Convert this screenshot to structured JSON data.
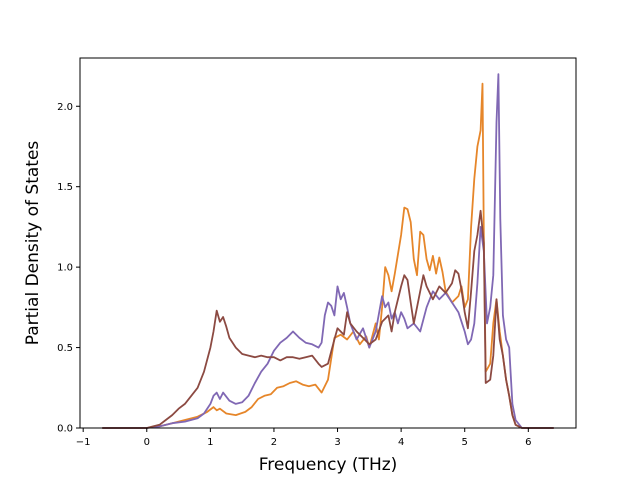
{
  "chart_data": {
    "type": "line",
    "xlabel": "Frequency (THz)",
    "ylabel": "Partial Density of States",
    "xlim": [
      -1.05,
      6.75
    ],
    "ylim": [
      0,
      2.3
    ],
    "xticks": [
      -1,
      0,
      1,
      2,
      3,
      4,
      5,
      6
    ],
    "yticks": [
      0,
      0.5,
      1,
      1.5,
      2
    ],
    "xtick_labels": [
      "−1",
      "0",
      "1",
      "2",
      "3",
      "4",
      "5",
      "6"
    ],
    "ytick_labels": [
      "0.0",
      "0.5",
      "1.0",
      "1.5",
      "2.0"
    ],
    "grid": false,
    "series": [
      {
        "color": "#e6862a",
        "points": [
          [
            -0.7,
            0
          ],
          [
            0,
            0
          ],
          [
            0.2,
            0.01
          ],
          [
            0.4,
            0.03
          ],
          [
            0.6,
            0.05
          ],
          [
            0.8,
            0.07
          ],
          [
            0.95,
            0.1
          ],
          [
            1.05,
            0.13
          ],
          [
            1.1,
            0.11
          ],
          [
            1.15,
            0.12
          ],
          [
            1.25,
            0.09
          ],
          [
            1.4,
            0.08
          ],
          [
            1.55,
            0.1
          ],
          [
            1.65,
            0.13
          ],
          [
            1.75,
            0.18
          ],
          [
            1.85,
            0.2
          ],
          [
            1.95,
            0.21
          ],
          [
            2.05,
            0.25
          ],
          [
            2.15,
            0.26
          ],
          [
            2.25,
            0.28
          ],
          [
            2.35,
            0.29
          ],
          [
            2.45,
            0.27
          ],
          [
            2.55,
            0.26
          ],
          [
            2.65,
            0.27
          ],
          [
            2.75,
            0.22
          ],
          [
            2.85,
            0.3
          ],
          [
            2.95,
            0.56
          ],
          [
            3.05,
            0.58
          ],
          [
            3.15,
            0.55
          ],
          [
            3.25,
            0.6
          ],
          [
            3.35,
            0.52
          ],
          [
            3.45,
            0.57
          ],
          [
            3.5,
            0.5
          ],
          [
            3.6,
            0.65
          ],
          [
            3.65,
            0.55
          ],
          [
            3.7,
            0.75
          ],
          [
            3.75,
            1.0
          ],
          [
            3.8,
            0.95
          ],
          [
            3.85,
            0.85
          ],
          [
            3.9,
            0.96
          ],
          [
            4.0,
            1.2
          ],
          [
            4.05,
            1.37
          ],
          [
            4.1,
            1.36
          ],
          [
            4.15,
            1.28
          ],
          [
            4.2,
            1.05
          ],
          [
            4.25,
            0.95
          ],
          [
            4.3,
            1.22
          ],
          [
            4.35,
            1.2
          ],
          [
            4.4,
            1.05
          ],
          [
            4.45,
            0.98
          ],
          [
            4.5,
            1.07
          ],
          [
            4.55,
            0.96
          ],
          [
            4.6,
            1.06
          ],
          [
            4.65,
            0.97
          ],
          [
            4.7,
            0.85
          ],
          [
            4.8,
            0.78
          ],
          [
            4.9,
            0.82
          ],
          [
            4.95,
            0.88
          ],
          [
            5.0,
            0.75
          ],
          [
            5.05,
            0.8
          ],
          [
            5.1,
            1.25
          ],
          [
            5.15,
            1.55
          ],
          [
            5.2,
            1.75
          ],
          [
            5.25,
            1.85
          ],
          [
            5.28,
            2.14
          ],
          [
            5.3,
            1.2
          ],
          [
            5.33,
            0.35
          ],
          [
            5.4,
            0.4
          ],
          [
            5.45,
            0.65
          ],
          [
            5.5,
            0.8
          ],
          [
            5.55,
            0.6
          ],
          [
            5.6,
            0.45
          ],
          [
            5.65,
            0.3
          ],
          [
            5.7,
            0.2
          ],
          [
            5.75,
            0.08
          ],
          [
            5.8,
            0.02
          ],
          [
            5.9,
            0
          ],
          [
            6.4,
            0
          ]
        ]
      },
      {
        "color": "#8068b4",
        "points": [
          [
            -0.7,
            0
          ],
          [
            0,
            0
          ],
          [
            0.2,
            0.01
          ],
          [
            0.4,
            0.03
          ],
          [
            0.6,
            0.04
          ],
          [
            0.8,
            0.06
          ],
          [
            0.9,
            0.09
          ],
          [
            1.0,
            0.15
          ],
          [
            1.05,
            0.2
          ],
          [
            1.1,
            0.22
          ],
          [
            1.15,
            0.18
          ],
          [
            1.2,
            0.22
          ],
          [
            1.3,
            0.17
          ],
          [
            1.4,
            0.15
          ],
          [
            1.5,
            0.16
          ],
          [
            1.6,
            0.2
          ],
          [
            1.7,
            0.28
          ],
          [
            1.8,
            0.35
          ],
          [
            1.9,
            0.4
          ],
          [
            2.0,
            0.48
          ],
          [
            2.1,
            0.53
          ],
          [
            2.2,
            0.56
          ],
          [
            2.3,
            0.6
          ],
          [
            2.4,
            0.56
          ],
          [
            2.5,
            0.53
          ],
          [
            2.6,
            0.52
          ],
          [
            2.7,
            0.5
          ],
          [
            2.75,
            0.53
          ],
          [
            2.8,
            0.7
          ],
          [
            2.85,
            0.78
          ],
          [
            2.9,
            0.76
          ],
          [
            2.95,
            0.7
          ],
          [
            3.0,
            0.88
          ],
          [
            3.05,
            0.8
          ],
          [
            3.1,
            0.84
          ],
          [
            3.15,
            0.75
          ],
          [
            3.2,
            0.65
          ],
          [
            3.3,
            0.55
          ],
          [
            3.4,
            0.62
          ],
          [
            3.5,
            0.5
          ],
          [
            3.6,
            0.6
          ],
          [
            3.7,
            0.82
          ],
          [
            3.75,
            0.75
          ],
          [
            3.8,
            0.78
          ],
          [
            3.85,
            0.68
          ],
          [
            3.9,
            0.72
          ],
          [
            3.95,
            0.65
          ],
          [
            4.0,
            0.72
          ],
          [
            4.05,
            0.68
          ],
          [
            4.1,
            0.62
          ],
          [
            4.2,
            0.65
          ],
          [
            4.3,
            0.6
          ],
          [
            4.4,
            0.75
          ],
          [
            4.5,
            0.85
          ],
          [
            4.6,
            0.8
          ],
          [
            4.7,
            0.84
          ],
          [
            4.8,
            0.78
          ],
          [
            4.9,
            0.72
          ],
          [
            5.0,
            0.6
          ],
          [
            5.05,
            0.52
          ],
          [
            5.1,
            0.55
          ],
          [
            5.15,
            0.65
          ],
          [
            5.2,
            0.9
          ],
          [
            5.25,
            1.25
          ],
          [
            5.3,
            1.1
          ],
          [
            5.35,
            0.65
          ],
          [
            5.4,
            0.75
          ],
          [
            5.45,
            0.95
          ],
          [
            5.5,
            1.9
          ],
          [
            5.53,
            2.2
          ],
          [
            5.56,
            1.3
          ],
          [
            5.6,
            0.7
          ],
          [
            5.65,
            0.55
          ],
          [
            5.7,
            0.5
          ],
          [
            5.75,
            0.15
          ],
          [
            5.8,
            0.05
          ],
          [
            5.9,
            0
          ],
          [
            6.4,
            0
          ]
        ]
      },
      {
        "color": "#8c4a42",
        "points": [
          [
            -0.7,
            0
          ],
          [
            0,
            0
          ],
          [
            0.1,
            0.01
          ],
          [
            0.2,
            0.02
          ],
          [
            0.3,
            0.05
          ],
          [
            0.4,
            0.08
          ],
          [
            0.5,
            0.12
          ],
          [
            0.6,
            0.15
          ],
          [
            0.7,
            0.2
          ],
          [
            0.8,
            0.25
          ],
          [
            0.9,
            0.35
          ],
          [
            1.0,
            0.5
          ],
          [
            1.05,
            0.6
          ],
          [
            1.1,
            0.73
          ],
          [
            1.15,
            0.66
          ],
          [
            1.2,
            0.69
          ],
          [
            1.25,
            0.63
          ],
          [
            1.3,
            0.56
          ],
          [
            1.4,
            0.5
          ],
          [
            1.5,
            0.46
          ],
          [
            1.6,
            0.45
          ],
          [
            1.7,
            0.44
          ],
          [
            1.8,
            0.45
          ],
          [
            1.9,
            0.44
          ],
          [
            2.0,
            0.44
          ],
          [
            2.1,
            0.42
          ],
          [
            2.2,
            0.44
          ],
          [
            2.3,
            0.44
          ],
          [
            2.4,
            0.43
          ],
          [
            2.5,
            0.44
          ],
          [
            2.6,
            0.45
          ],
          [
            2.7,
            0.4
          ],
          [
            2.75,
            0.38
          ],
          [
            2.85,
            0.4
          ],
          [
            2.95,
            0.55
          ],
          [
            3.0,
            0.62
          ],
          [
            3.1,
            0.58
          ],
          [
            3.15,
            0.72
          ],
          [
            3.2,
            0.65
          ],
          [
            3.3,
            0.6
          ],
          [
            3.4,
            0.56
          ],
          [
            3.5,
            0.52
          ],
          [
            3.6,
            0.55
          ],
          [
            3.7,
            0.66
          ],
          [
            3.8,
            0.7
          ],
          [
            3.85,
            0.6
          ],
          [
            3.9,
            0.72
          ],
          [
            4.0,
            0.88
          ],
          [
            4.05,
            0.95
          ],
          [
            4.1,
            0.92
          ],
          [
            4.15,
            0.78
          ],
          [
            4.2,
            0.65
          ],
          [
            4.3,
            0.85
          ],
          [
            4.35,
            0.95
          ],
          [
            4.4,
            0.88
          ],
          [
            4.5,
            0.8
          ],
          [
            4.6,
            0.88
          ],
          [
            4.7,
            0.84
          ],
          [
            4.8,
            0.9
          ],
          [
            4.85,
            0.98
          ],
          [
            4.9,
            0.96
          ],
          [
            4.95,
            0.86
          ],
          [
            5.0,
            0.72
          ],
          [
            5.05,
            0.62
          ],
          [
            5.1,
            0.85
          ],
          [
            5.15,
            1.1
          ],
          [
            5.2,
            1.2
          ],
          [
            5.25,
            1.35
          ],
          [
            5.3,
            1.15
          ],
          [
            5.33,
            0.28
          ],
          [
            5.4,
            0.3
          ],
          [
            5.45,
            0.45
          ],
          [
            5.5,
            0.8
          ],
          [
            5.55,
            0.55
          ],
          [
            5.6,
            0.45
          ],
          [
            5.65,
            0.3
          ],
          [
            5.7,
            0.2
          ],
          [
            5.75,
            0.08
          ],
          [
            5.8,
            0.02
          ],
          [
            5.9,
            0
          ],
          [
            6.4,
            0
          ]
        ]
      }
    ]
  }
}
